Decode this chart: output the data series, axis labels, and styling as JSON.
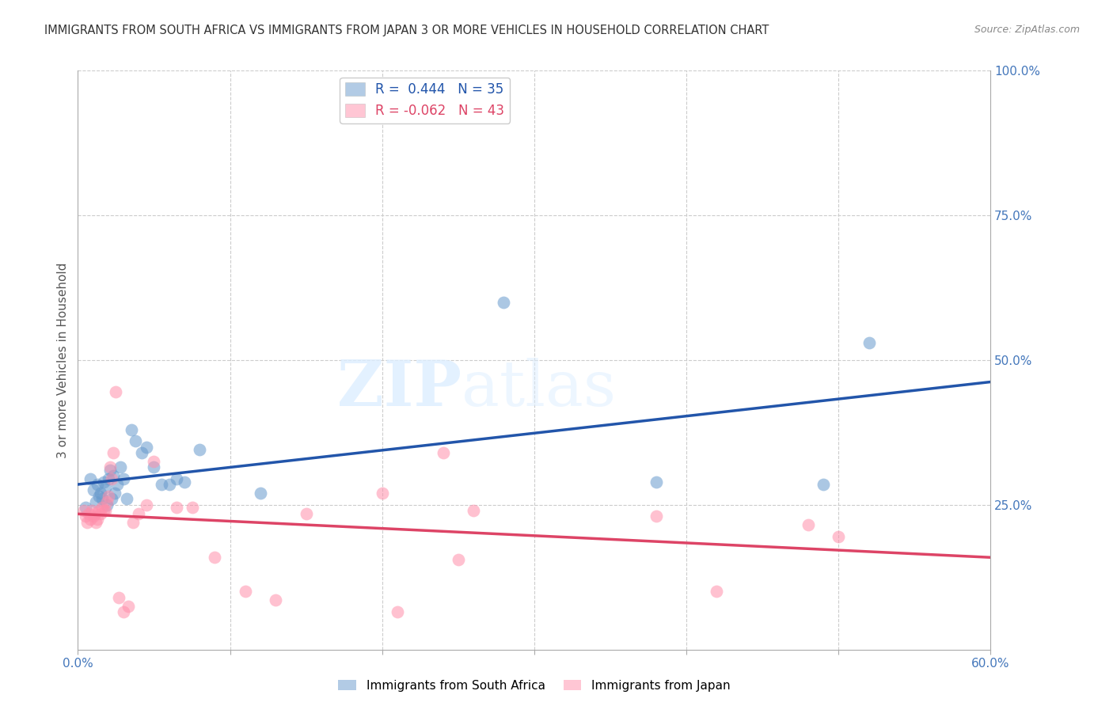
{
  "title": "IMMIGRANTS FROM SOUTH AFRICA VS IMMIGRANTS FROM JAPAN 3 OR MORE VEHICLES IN HOUSEHOLD CORRELATION CHART",
  "source": "Source: ZipAtlas.com",
  "ylabel": "3 or more Vehicles in Household",
  "xlim": [
    0.0,
    0.6
  ],
  "ylim": [
    0.0,
    1.0
  ],
  "legend_blue_R": "0.444",
  "legend_blue_N": "35",
  "legend_pink_R": "-0.062",
  "legend_pink_N": "43",
  "blue_color": "#6699CC",
  "pink_color": "#FF8FAB",
  "line_blue": "#2255AA",
  "line_pink": "#DD4466",
  "watermark_zip": "ZIP",
  "watermark_atlas": "atlas",
  "blue_points_x": [
    0.005,
    0.008,
    0.01,
    0.012,
    0.013,
    0.014,
    0.015,
    0.016,
    0.017,
    0.018,
    0.019,
    0.02,
    0.021,
    0.022,
    0.023,
    0.024,
    0.026,
    0.028,
    0.03,
    0.032,
    0.035,
    0.038,
    0.042,
    0.045,
    0.05,
    0.055,
    0.06,
    0.065,
    0.07,
    0.08,
    0.12,
    0.28,
    0.38,
    0.49,
    0.52
  ],
  "blue_points_y": [
    0.245,
    0.295,
    0.275,
    0.255,
    0.285,
    0.265,
    0.27,
    0.26,
    0.29,
    0.28,
    0.25,
    0.295,
    0.31,
    0.26,
    0.3,
    0.27,
    0.285,
    0.315,
    0.295,
    0.26,
    0.38,
    0.36,
    0.34,
    0.35,
    0.315,
    0.285,
    0.285,
    0.295,
    0.29,
    0.345,
    0.27,
    0.6,
    0.29,
    0.285,
    0.53
  ],
  "pink_points_x": [
    0.004,
    0.005,
    0.006,
    0.007,
    0.008,
    0.009,
    0.01,
    0.011,
    0.012,
    0.013,
    0.014,
    0.015,
    0.016,
    0.017,
    0.018,
    0.019,
    0.02,
    0.021,
    0.022,
    0.023,
    0.025,
    0.027,
    0.03,
    0.033,
    0.036,
    0.04,
    0.045,
    0.05,
    0.065,
    0.075,
    0.09,
    0.11,
    0.13,
    0.15,
    0.2,
    0.21,
    0.24,
    0.25,
    0.26,
    0.38,
    0.42,
    0.48,
    0.5
  ],
  "pink_points_y": [
    0.24,
    0.23,
    0.22,
    0.235,
    0.225,
    0.24,
    0.23,
    0.235,
    0.22,
    0.225,
    0.24,
    0.235,
    0.245,
    0.24,
    0.24,
    0.255,
    0.265,
    0.315,
    0.295,
    0.34,
    0.445,
    0.09,
    0.065,
    0.075,
    0.22,
    0.235,
    0.25,
    0.325,
    0.245,
    0.245,
    0.16,
    0.1,
    0.085,
    0.235,
    0.27,
    0.065,
    0.34,
    0.155,
    0.24,
    0.23,
    0.1,
    0.215,
    0.195
  ]
}
